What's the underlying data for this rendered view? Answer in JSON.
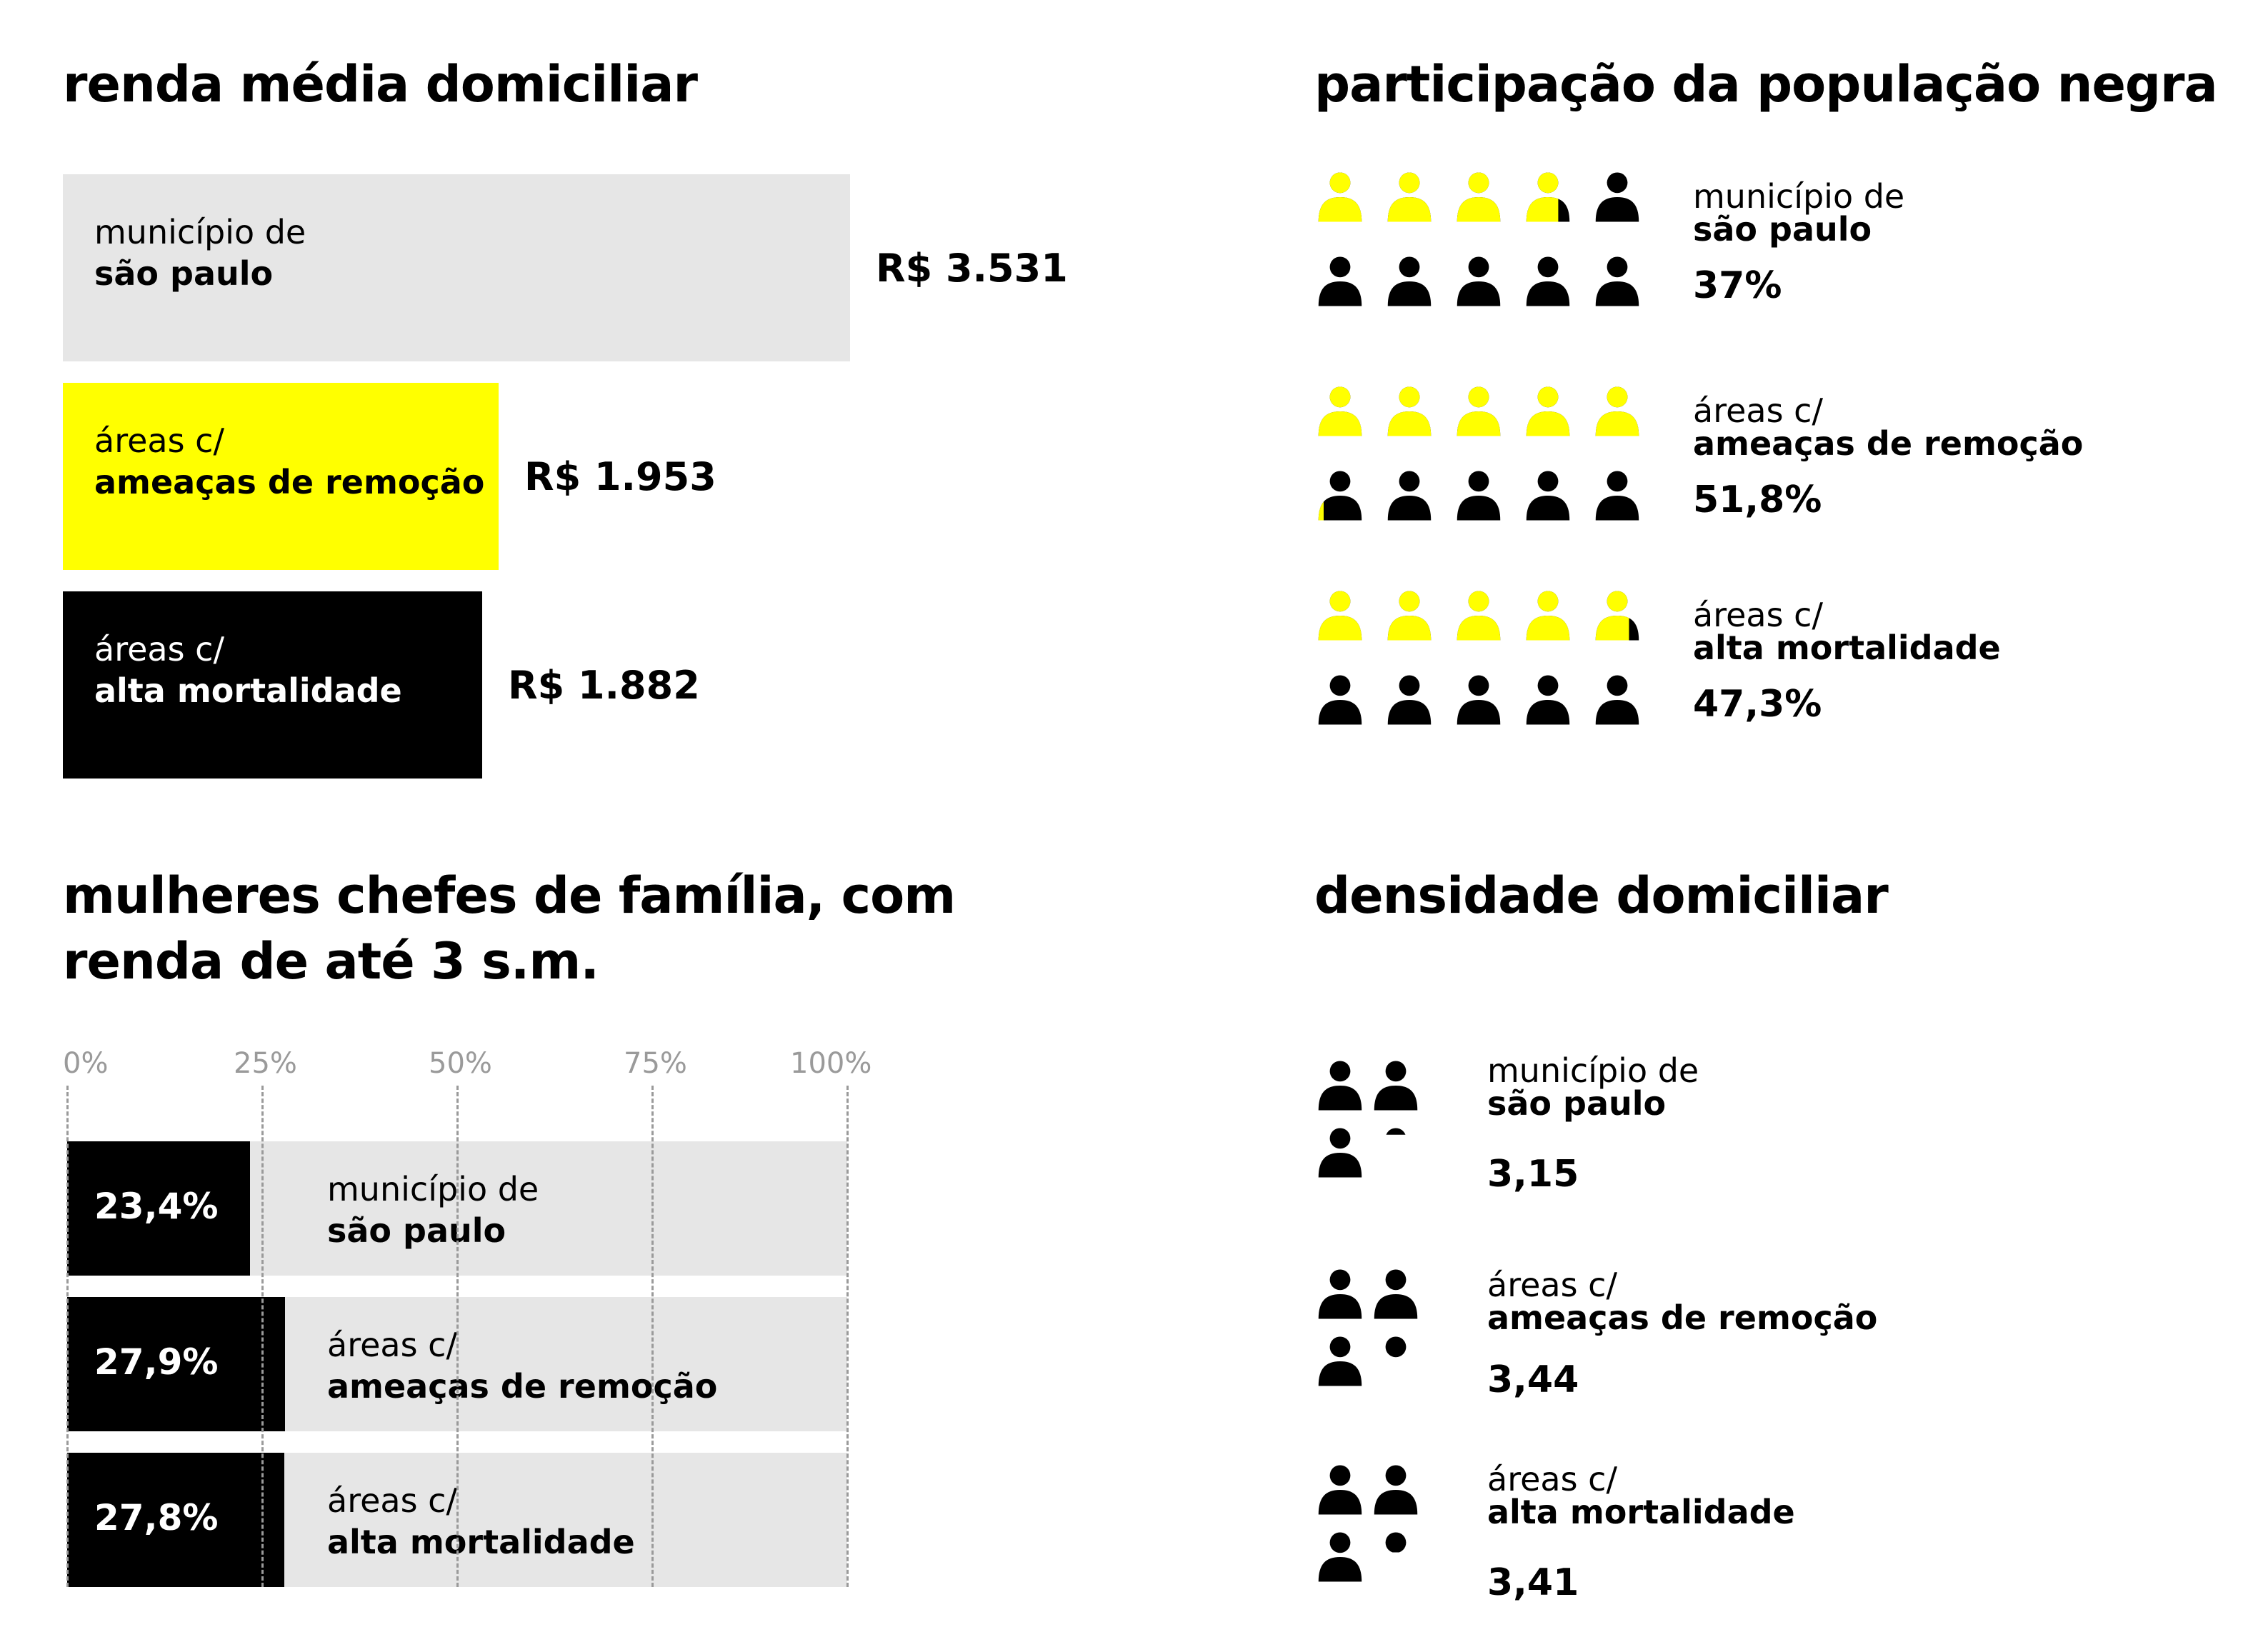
{
  "colors": {
    "yellow": "#ffff00",
    "black": "#000000",
    "gray": "#e6e6e6",
    "axis_gray": "#9a9a9a"
  },
  "chart_data": [
    {
      "type": "bar",
      "title": "renda média domiciliar",
      "categories": [
        {
          "line1": "município de",
          "line2": "são paulo"
        },
        {
          "line1": "áreas c/",
          "line2": "ameaças de remoção"
        },
        {
          "line1": "áreas c/",
          "line2": "alta mortalidade"
        }
      ],
      "values": [
        3531,
        1953,
        1882
      ],
      "value_labels": [
        "R$ 3.531",
        "R$ 1.953",
        "R$ 1.882"
      ],
      "bar_colors": [
        "#e6e6e6",
        "#ffff00",
        "#000000"
      ],
      "orientation": "horizontal"
    },
    {
      "type": "pictogram",
      "title": "participação da população negra",
      "icons_per_group": 10,
      "icon_name": "person-icon",
      "categories": [
        {
          "line1": "município de",
          "line2": "são paulo"
        },
        {
          "line1": "áreas c/",
          "line2": "ameaças de remoção"
        },
        {
          "line1": "áreas c/",
          "line2": "alta mortalidade"
        }
      ],
      "values": [
        37,
        51.8,
        47.3
      ],
      "value_labels": [
        "37%",
        "51,8%",
        "47,3%"
      ],
      "fill_color": "#ffff00",
      "base_color": "#000000"
    },
    {
      "type": "bar",
      "title_line1": "mulheres chefes de família, com",
      "title_line2": "renda de até 3 s.m.",
      "orientation": "horizontal",
      "xlim": [
        0,
        100
      ],
      "ticks": [
        0,
        25,
        50,
        75,
        100
      ],
      "tick_labels": [
        "0%",
        "25%",
        "50%",
        "75%",
        "100%"
      ],
      "grid": true,
      "categories": [
        {
          "line1": "município de",
          "line2": "são paulo"
        },
        {
          "line1": "áreas c/",
          "line2": "ameaças de remoção"
        },
        {
          "line1": "áreas c/",
          "line2": "alta mortalidade"
        }
      ],
      "values": [
        23.4,
        27.9,
        27.8
      ],
      "value_labels": [
        "23,4%",
        "27,9%",
        "27,8%"
      ]
    },
    {
      "type": "pictogram",
      "title": "densidade domiciliar",
      "icon_name": "person-icon",
      "categories": [
        {
          "line1": "município de",
          "line2": "são paulo"
        },
        {
          "line1": "áreas c/",
          "line2": "ameaças de remoção"
        },
        {
          "line1": "áreas c/",
          "line2": "alta mortalidade"
        }
      ],
      "values": [
        3.15,
        3.44,
        3.41
      ],
      "value_labels": [
        "3,15",
        "3,44",
        "3,41"
      ]
    }
  ]
}
